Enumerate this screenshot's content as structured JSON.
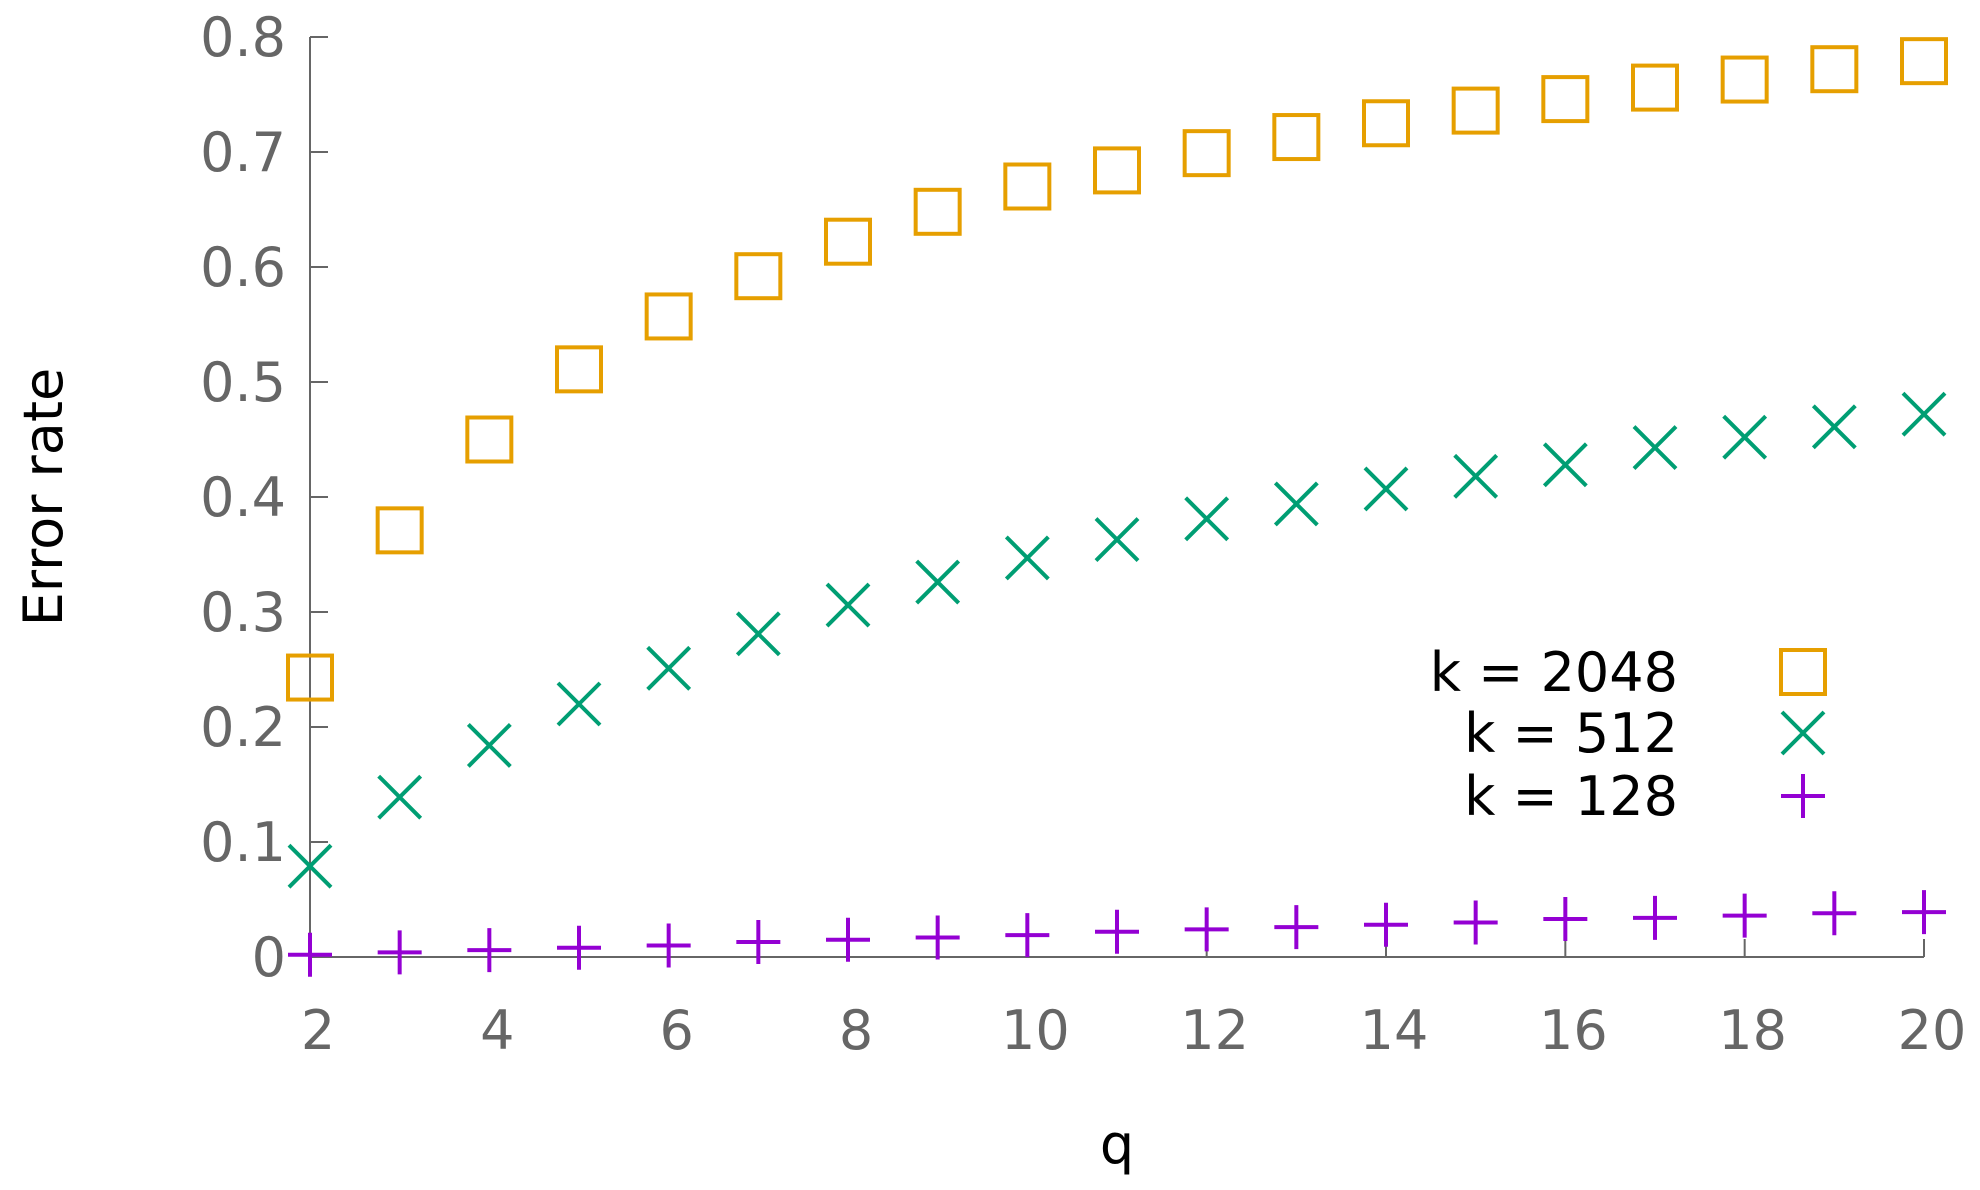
{
  "chart_data": {
    "type": "scatter",
    "xlabel": "q",
    "ylabel": "Error rate",
    "xlim": [
      2,
      20
    ],
    "ylim": [
      0,
      0.8
    ],
    "xticks": [
      "2",
      "4",
      "6",
      "8",
      "10",
      "12",
      "14",
      "16",
      "18",
      "20"
    ],
    "yticks": [
      "0",
      "0.1",
      "0.2",
      "0.3",
      "0.4",
      "0.5",
      "0.6",
      "0.7",
      "0.8"
    ],
    "legend_position": "right",
    "series": [
      {
        "name": "k = 2048",
        "marker": "square",
        "color": "#e69f00",
        "x": [
          2,
          3,
          4,
          5,
          6,
          7,
          8,
          9,
          10,
          11,
          12,
          13,
          14,
          15,
          16,
          17,
          18,
          19,
          20
        ],
        "values": [
          0.243,
          0.371,
          0.45,
          0.511,
          0.557,
          0.592,
          0.622,
          0.648,
          0.67,
          0.684,
          0.699,
          0.713,
          0.725,
          0.736,
          0.746,
          0.756,
          0.763,
          0.772,
          0.779
        ]
      },
      {
        "name": "k = 512",
        "marker": "x",
        "color": "#009e73",
        "x": [
          2,
          3,
          4,
          5,
          6,
          7,
          8,
          9,
          10,
          11,
          12,
          13,
          14,
          15,
          16,
          17,
          18,
          19,
          20
        ],
        "values": [
          0.079,
          0.139,
          0.184,
          0.22,
          0.251,
          0.281,
          0.306,
          0.326,
          0.347,
          0.363,
          0.381,
          0.394,
          0.407,
          0.418,
          0.428,
          0.443,
          0.452,
          0.461,
          0.472
        ]
      },
      {
        "name": "k = 128",
        "marker": "plus",
        "color": "#9400d3",
        "x": [
          2,
          3,
          4,
          5,
          6,
          7,
          8,
          9,
          10,
          11,
          12,
          13,
          14,
          15,
          16,
          17,
          18,
          19,
          20
        ],
        "values": [
          0.002,
          0.004,
          0.006,
          0.008,
          0.01,
          0.013,
          0.015,
          0.017,
          0.019,
          0.022,
          0.024,
          0.026,
          0.028,
          0.03,
          0.033,
          0.034,
          0.036,
          0.038,
          0.039
        ]
      }
    ]
  }
}
